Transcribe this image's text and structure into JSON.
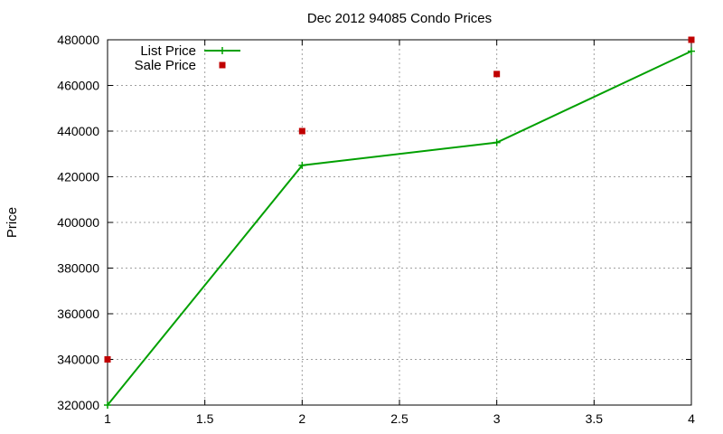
{
  "chart_data": {
    "type": "line",
    "title": "Dec 2012 94085 Condo Prices",
    "xlabel": "",
    "ylabel": "Price",
    "xlim": [
      1,
      4
    ],
    "ylim": [
      320000,
      480000
    ],
    "x_ticks": [
      "1",
      "1.5",
      "2",
      "2.5",
      "3",
      "3.5",
      "4"
    ],
    "y_ticks": [
      "320000",
      "340000",
      "360000",
      "380000",
      "400000",
      "420000",
      "440000",
      "460000",
      "480000"
    ],
    "grid": true,
    "legend_position": "top-left",
    "series": [
      {
        "name": "List Price",
        "style": "lines+points",
        "color": "#00a000",
        "x": [
          1,
          2,
          3,
          4
        ],
        "values": [
          320000,
          425000,
          435000,
          475000
        ]
      },
      {
        "name": "Sale Price",
        "style": "points",
        "color": "#c00000",
        "x": [
          1,
          2,
          3,
          4
        ],
        "values": [
          340000,
          440000,
          465000,
          480000
        ]
      }
    ]
  }
}
